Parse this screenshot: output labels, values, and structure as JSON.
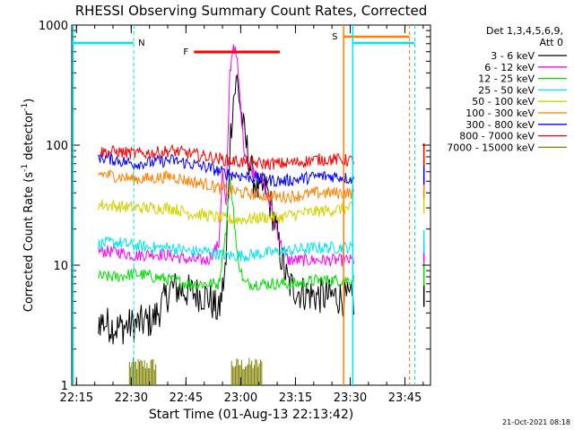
{
  "chart_data": {
    "type": "line",
    "title": "RHESSI Observing Summary Count Rates, Corrected",
    "xlabel": "Start Time (01-Aug-13 22:13:42)",
    "ylabel": "Corrected Count Rate (s",
    "ylabel_sup1": "-1",
    "ylabel_mid": " detector",
    "ylabel_sup2": "-1",
    "ylabel_end": ")",
    "y_scale": "log",
    "ylim": [
      1,
      1000
    ],
    "xlim": [
      "22:13:42",
      "23:52:00"
    ],
    "x_ticks": [
      "22:15",
      "22:30",
      "22:45",
      "23:00",
      "23:15",
      "23:30",
      "23:45"
    ],
    "y_ticks": [
      "1",
      "10",
      "100",
      "1000"
    ],
    "legend_title": "Det 1,3,4,5,6,9,",
    "legend_subtitle": "Att 0",
    "legend_position": "right",
    "timestamp": "21-Oct-2021 08:18",
    "annotations": [
      {
        "label": "N",
        "color": "#00e5ee"
      },
      {
        "label": "F",
        "color": "#ff0000"
      },
      {
        "label": "S",
        "color": "#ff8000"
      }
    ],
    "series": [
      {
        "name": "3 - 6 keV",
        "color": "#000000",
        "points": [
          [
            0,
            3.5
          ],
          [
            5,
            3.0
          ],
          [
            10,
            3.2
          ],
          [
            15,
            3.5
          ],
          [
            18,
            5.0
          ],
          [
            20,
            6.5
          ],
          [
            25,
            6.0
          ],
          [
            30,
            5.5
          ],
          [
            33,
            4.0
          ],
          [
            35,
            10
          ],
          [
            36,
            100
          ],
          [
            37,
            250
          ],
          [
            38,
            350
          ],
          [
            39,
            200
          ],
          [
            40,
            120
          ],
          [
            42,
            60
          ],
          [
            44,
            40
          ],
          [
            46,
            45
          ],
          [
            48,
            25
          ],
          [
            50,
            12
          ],
          [
            52,
            7
          ],
          [
            55,
            6
          ],
          [
            60,
            5.5
          ],
          [
            65,
            5.5
          ],
          [
            70,
            5.0
          ]
        ]
      },
      {
        "name": "6 - 12 keV",
        "color": "#ff00ff",
        "points": [
          [
            0,
            13
          ],
          [
            5,
            13
          ],
          [
            10,
            12
          ],
          [
            15,
            12.5
          ],
          [
            20,
            12
          ],
          [
            25,
            11
          ],
          [
            30,
            11
          ],
          [
            33,
            15
          ],
          [
            34,
            60
          ],
          [
            35,
            30
          ],
          [
            36,
            400
          ],
          [
            37,
            700
          ],
          [
            38,
            500
          ],
          [
            39,
            200
          ],
          [
            40,
            90
          ],
          [
            42,
            60
          ],
          [
            44,
            60
          ],
          [
            46,
            40
          ],
          [
            48,
            25
          ],
          [
            50,
            15
          ],
          [
            52,
            11
          ],
          [
            55,
            11
          ],
          [
            60,
            11
          ],
          [
            65,
            11
          ],
          [
            70,
            11
          ]
        ]
      },
      {
        "name": "12 - 25 keV",
        "color": "#00dd00",
        "points": [
          [
            0,
            8
          ],
          [
            5,
            8
          ],
          [
            10,
            8.5
          ],
          [
            15,
            8
          ],
          [
            20,
            7.5
          ],
          [
            25,
            7
          ],
          [
            30,
            7
          ],
          [
            33,
            7
          ],
          [
            35,
            20
          ],
          [
            36,
            50
          ],
          [
            37,
            30
          ],
          [
            38,
            12
          ],
          [
            40,
            7
          ],
          [
            45,
            7
          ],
          [
            50,
            7
          ],
          [
            55,
            7
          ],
          [
            60,
            7.5
          ],
          [
            65,
            7.5
          ],
          [
            70,
            7.5
          ]
        ]
      },
      {
        "name": "25 - 50 keV",
        "color": "#00e5ee",
        "points": [
          [
            0,
            15
          ],
          [
            5,
            15.5
          ],
          [
            10,
            14.5
          ],
          [
            15,
            14
          ],
          [
            20,
            14
          ],
          [
            25,
            13
          ],
          [
            30,
            13
          ],
          [
            35,
            12
          ],
          [
            40,
            12
          ],
          [
            45,
            12.5
          ],
          [
            50,
            13
          ],
          [
            55,
            13.5
          ],
          [
            60,
            14
          ],
          [
            65,
            14
          ],
          [
            70,
            14
          ]
        ]
      },
      {
        "name": "50 - 100 keV",
        "color": "#d2d200",
        "points": [
          [
            0,
            32
          ],
          [
            5,
            31
          ],
          [
            10,
            30
          ],
          [
            15,
            30
          ],
          [
            20,
            30
          ],
          [
            25,
            27
          ],
          [
            30,
            26
          ],
          [
            35,
            24
          ],
          [
            40,
            24
          ],
          [
            45,
            25
          ],
          [
            50,
            25
          ],
          [
            55,
            27
          ],
          [
            60,
            28
          ],
          [
            65,
            29
          ],
          [
            70,
            30
          ]
        ]
      },
      {
        "name": "100 - 300 keV",
        "color": "#ff8000",
        "points": [
          [
            0,
            58
          ],
          [
            5,
            55
          ],
          [
            10,
            52
          ],
          [
            15,
            53
          ],
          [
            20,
            55
          ],
          [
            25,
            50
          ],
          [
            30,
            47
          ],
          [
            35,
            42
          ],
          [
            40,
            40
          ],
          [
            45,
            38
          ],
          [
            50,
            37
          ],
          [
            55,
            38
          ],
          [
            60,
            40
          ],
          [
            65,
            40
          ],
          [
            70,
            40
          ]
        ]
      },
      {
        "name": "300 - 800 keV",
        "color": "#0000ff",
        "points": [
          [
            0,
            80
          ],
          [
            5,
            75
          ],
          [
            10,
            70
          ],
          [
            15,
            72
          ],
          [
            20,
            75
          ],
          [
            25,
            70
          ],
          [
            30,
            65
          ],
          [
            35,
            58
          ],
          [
            40,
            55
          ],
          [
            45,
            52
          ],
          [
            50,
            50
          ],
          [
            55,
            52
          ],
          [
            60,
            55
          ],
          [
            65,
            55
          ],
          [
            70,
            52
          ]
        ]
      },
      {
        "name": "800 - 7000 keV",
        "color": "#ff0000",
        "points": [
          [
            0,
            88
          ],
          [
            5,
            88
          ],
          [
            10,
            85
          ],
          [
            15,
            86
          ],
          [
            20,
            90
          ],
          [
            25,
            85
          ],
          [
            30,
            80
          ],
          [
            35,
            75
          ],
          [
            40,
            72
          ],
          [
            45,
            70
          ],
          [
            50,
            70
          ],
          [
            55,
            72
          ],
          [
            60,
            76
          ],
          [
            65,
            76
          ],
          [
            70,
            74
          ]
        ]
      },
      {
        "name": "7000 - 15000 keV",
        "color": "#808000",
        "points": []
      }
    ]
  }
}
